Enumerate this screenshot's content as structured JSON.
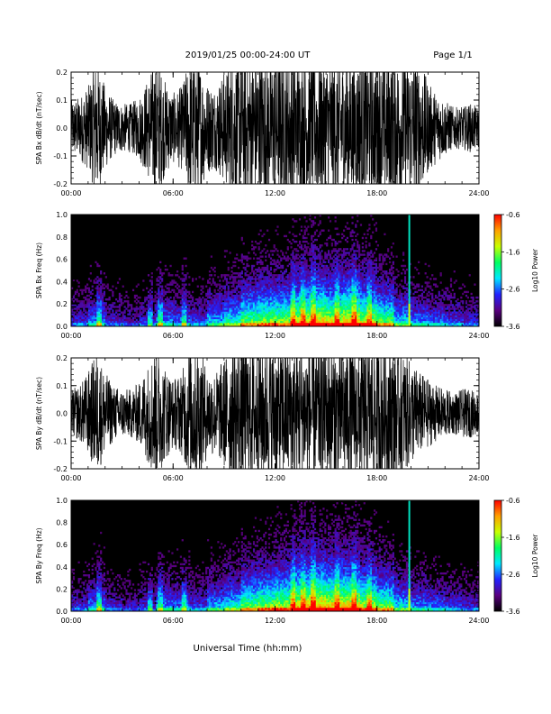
{
  "header": {
    "title": "2019/01/25  00:00-24:00 UT",
    "page": "Page 1/1"
  },
  "xlabel": "Universal Time (hh:mm)",
  "colors": {
    "background": "#ffffff",
    "waveform": "#000000",
    "spectrogram_background": "#000000",
    "colorbar": [
      "#000000",
      "#5a0080",
      "#2222ff",
      "#00e8ff",
      "#00ff60",
      "#c8ff00",
      "#ffa000",
      "#ff0000"
    ]
  },
  "chart_data": [
    {
      "id": "bx-waveform",
      "type": "line",
      "ylabel": "SPA Bx dB/dt (nT/sec)",
      "ylim": [
        -0.2,
        0.2
      ],
      "xlim": [
        "00:00",
        "24:00"
      ],
      "xticks": [
        "00:00",
        "06:00",
        "12:00",
        "18:00",
        "24:00"
      ],
      "yticks": [
        "-0.2",
        "-0.1",
        "0.0",
        "0.1",
        "0.2"
      ],
      "series": [
        {
          "x_hours": [
            0,
            0.5,
            1,
            1.5,
            2,
            2.5,
            3,
            3.5,
            4,
            4.5,
            5,
            5.5,
            6,
            6.5,
            7,
            7.5,
            8,
            8.5,
            9,
            9.5,
            10,
            10.5,
            11,
            11.5,
            12,
            12.5,
            13,
            13.5,
            14,
            14.5,
            15,
            15.5,
            16,
            16.5,
            17,
            17.5,
            18,
            18.5,
            19,
            19.5,
            20,
            20.5,
            21,
            21.5,
            22,
            22.5,
            23,
            23.5,
            24
          ],
          "amplitude_envelope": [
            0.08,
            0.09,
            0.12,
            0.2,
            0.12,
            0.08,
            0.07,
            0.07,
            0.09,
            0.14,
            0.2,
            0.14,
            0.1,
            0.12,
            0.2,
            0.2,
            0.13,
            0.12,
            0.16,
            0.2,
            0.2,
            0.2,
            0.2,
            0.2,
            0.2,
            0.2,
            0.2,
            0.2,
            0.2,
            0.2,
            0.2,
            0.2,
            0.2,
            0.2,
            0.2,
            0.2,
            0.2,
            0.2,
            0.2,
            0.2,
            0.2,
            0.2,
            0.13,
            0.1,
            0.08,
            0.06,
            0.06,
            0.07,
            0.06
          ]
        }
      ]
    },
    {
      "id": "bx-spectrogram",
      "type": "heatmap",
      "ylabel": "SPA Bx Freq (Hz)",
      "ylim": [
        0.0,
        1.0
      ],
      "xlim": [
        "00:00",
        "24:00"
      ],
      "xticks": [
        "00:00",
        "06:00",
        "12:00",
        "18:00",
        "24:00"
      ],
      "yticks": [
        "0.0",
        "0.2",
        "0.4",
        "0.6",
        "0.8",
        "1.0"
      ],
      "colorbar": {
        "label": "Log10 Power",
        "range": [
          -3.6,
          -0.6
        ],
        "ticks": [
          "-0.6",
          "-1.6",
          "-2.6",
          "-3.6"
        ]
      },
      "activity_by_hour": [
        0.3,
        0.45,
        0.3,
        0.25,
        0.3,
        0.45,
        0.4,
        0.35,
        0.5,
        0.6,
        0.75,
        0.8,
        0.8,
        0.9,
        0.95,
        0.9,
        0.95,
        0.85,
        0.75,
        0.55,
        0.45,
        0.4,
        0.35,
        0.3
      ],
      "vertical_features_hours": [
        1.6,
        4.6,
        5.2,
        6.6,
        13.0,
        13.6,
        14.2,
        15.6,
        16.6,
        17.5
      ],
      "spike_hour": 19.9
    },
    {
      "id": "by-waveform",
      "type": "line",
      "ylabel": "SPA By dB/dt (nT/sec)",
      "ylim": [
        -0.2,
        0.2
      ],
      "xlim": [
        "00:00",
        "24:00"
      ],
      "xticks": [
        "00:00",
        "06:00",
        "12:00",
        "18:00",
        "24:00"
      ],
      "yticks": [
        "-0.2",
        "-0.1",
        "0.0",
        "0.1",
        "0.2"
      ],
      "series": [
        {
          "x_hours": [
            0,
            0.5,
            1,
            1.5,
            2,
            2.5,
            3,
            3.5,
            4,
            4.5,
            5,
            5.5,
            6,
            6.5,
            7,
            7.5,
            8,
            8.5,
            9,
            9.5,
            10,
            10.5,
            11,
            11.5,
            12,
            12.5,
            13,
            13.5,
            14,
            14.5,
            15,
            15.5,
            16,
            16.5,
            17,
            17.5,
            18,
            18.5,
            19,
            19.5,
            20,
            20.5,
            21,
            21.5,
            22,
            22.5,
            23,
            23.5,
            24
          ],
          "amplitude_envelope": [
            0.07,
            0.08,
            0.12,
            0.18,
            0.12,
            0.08,
            0.07,
            0.07,
            0.09,
            0.14,
            0.2,
            0.14,
            0.1,
            0.12,
            0.2,
            0.2,
            0.13,
            0.12,
            0.16,
            0.2,
            0.2,
            0.2,
            0.2,
            0.2,
            0.2,
            0.2,
            0.2,
            0.2,
            0.2,
            0.2,
            0.2,
            0.2,
            0.2,
            0.2,
            0.2,
            0.2,
            0.2,
            0.2,
            0.2,
            0.18,
            0.15,
            0.12,
            0.1,
            0.08,
            0.07,
            0.06,
            0.07,
            0.07,
            0.06
          ]
        }
      ]
    },
    {
      "id": "by-spectrogram",
      "type": "heatmap",
      "ylabel": "SPA By Freq (Hz)",
      "ylim": [
        0.0,
        1.0
      ],
      "xlim": [
        "00:00",
        "24:00"
      ],
      "xticks": [
        "00:00",
        "06:00",
        "12:00",
        "18:00",
        "24:00"
      ],
      "yticks": [
        "0.0",
        "0.2",
        "0.4",
        "0.6",
        "0.8",
        "1.0"
      ],
      "colorbar": {
        "label": "Log10 Power",
        "range": [
          -3.6,
          -0.6
        ],
        "ticks": [
          "-0.6",
          "-1.6",
          "-2.6",
          "-3.6"
        ]
      },
      "activity_by_hour": [
        0.3,
        0.45,
        0.3,
        0.25,
        0.3,
        0.45,
        0.4,
        0.35,
        0.5,
        0.6,
        0.75,
        0.8,
        0.85,
        0.95,
        1.0,
        0.95,
        0.95,
        0.85,
        0.75,
        0.55,
        0.45,
        0.4,
        0.35,
        0.3
      ],
      "vertical_features_hours": [
        1.6,
        4.6,
        5.2,
        6.6,
        13.0,
        13.6,
        14.2,
        15.6,
        16.6,
        17.5
      ],
      "spike_hour": 19.9
    }
  ]
}
